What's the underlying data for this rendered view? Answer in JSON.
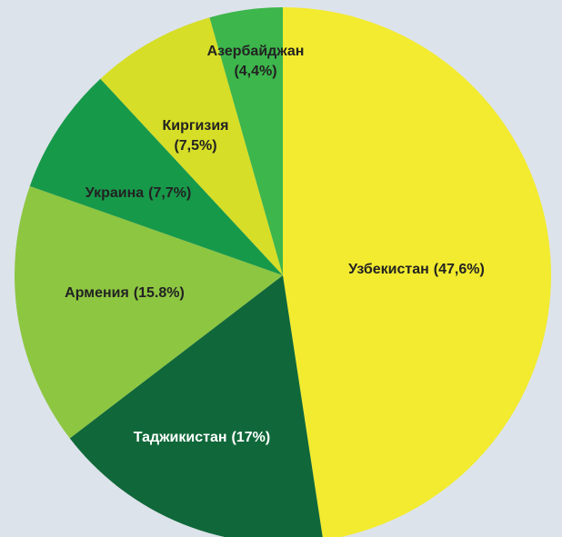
{
  "chart_data": {
    "type": "pie",
    "categories": [
      "Узбекистан",
      "Таджикистан",
      "Армения",
      "Украина",
      "Киргизия",
      "Азербайджан"
    ],
    "values": [
      47.6,
      17,
      15.8,
      7.7,
      7.5,
      4.4
    ],
    "value_labels": [
      "(47,6%)",
      "(17%)",
      "(15.8%)",
      "(7,7%)",
      "(7,5%)",
      "(4,4%)"
    ],
    "colors": [
      "#f2eb2f",
      "#10683a",
      "#8dc641",
      "#17994a",
      "#d6de27",
      "#3db64c"
    ]
  }
}
